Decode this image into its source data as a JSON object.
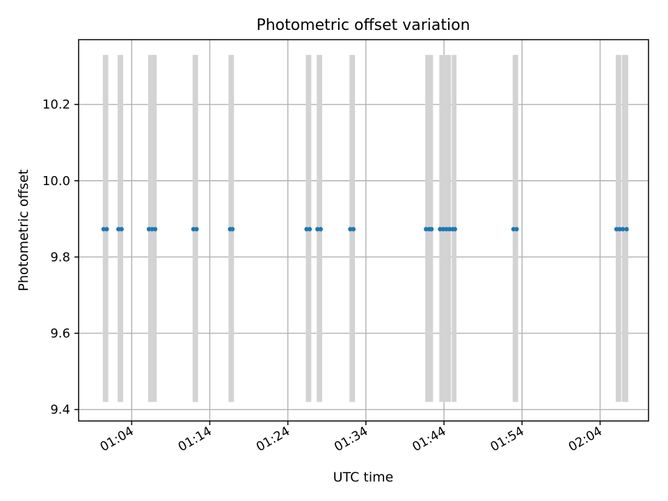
{
  "chart_data": {
    "type": "scatter",
    "title": "Photometric offset variation",
    "xlabel": "UTC time",
    "ylabel": "Photometric offset",
    "x_unit": "minutes",
    "xlim": [
      "00:57.2",
      "02:10.2"
    ],
    "ylim": [
      9.37,
      10.37
    ],
    "grid": true,
    "x_ticks": [
      "01:04",
      "01:14",
      "01:24",
      "01:34",
      "01:44",
      "01:54",
      "02:04"
    ],
    "y_ticks": [
      9.4,
      9.6,
      9.8,
      10.0,
      10.2
    ],
    "y_tick_labels": [
      "9.4",
      "9.6",
      "9.8",
      "10.0",
      "10.2"
    ],
    "band_range": [
      9.42,
      10.33
    ],
    "bands": [
      [
        "01:00.3",
        "01:01.0"
      ],
      [
        "01:02.2",
        "01:02.9"
      ],
      [
        "01:06.1",
        "01:07.2"
      ],
      [
        "01:11.8",
        "01:12.5"
      ],
      [
        "01:16.4",
        "01:17.1"
      ],
      [
        "01:26.3",
        "01:27.0"
      ],
      [
        "01:27.7",
        "01:28.4"
      ],
      [
        "01:31.9",
        "01:32.6"
      ],
      [
        "01:41.6",
        "01:42.6"
      ],
      [
        "01:43.4",
        "01:44.9"
      ],
      [
        "01:45.0",
        "01:45.6"
      ],
      [
        "01:52.8",
        "01:53.5"
      ],
      [
        "02:06.0",
        "02:06.7"
      ],
      [
        "02:06.8",
        "02:07.6"
      ]
    ],
    "series": [
      {
        "x": [
          "01:00.4",
          "01:00.8",
          "01:02.3",
          "01:02.7",
          "01:06.2",
          "01:06.6",
          "01:07.0",
          "01:11.9",
          "01:12.3",
          "01:16.6",
          "01:16.9",
          "01:26.4",
          "01:26.8",
          "01:27.8",
          "01:28.2",
          "01:32.0",
          "01:32.4",
          "01:41.7",
          "01:42.1",
          "01:42.4",
          "01:43.5",
          "01:43.9",
          "01:44.3",
          "01:44.7",
          "01:45.1",
          "01:45.4",
          "01:52.9",
          "01:53.3",
          "02:06.1",
          "02:06.5",
          "02:06.9",
          "02:07.4"
        ],
        "y": [
          9.873,
          9.873,
          9.873,
          9.873,
          9.873,
          9.873,
          9.873,
          9.873,
          9.873,
          9.873,
          9.873,
          9.873,
          9.873,
          9.873,
          9.873,
          9.873,
          9.873,
          9.873,
          9.873,
          9.873,
          9.873,
          9.873,
          9.873,
          9.873,
          9.873,
          9.873,
          9.873,
          9.873,
          9.873,
          9.873,
          9.873,
          9.873
        ]
      }
    ],
    "colors": {
      "points": "#1f77b4",
      "bands": "#d3d3d3",
      "grid": "#b0b0b0"
    }
  }
}
